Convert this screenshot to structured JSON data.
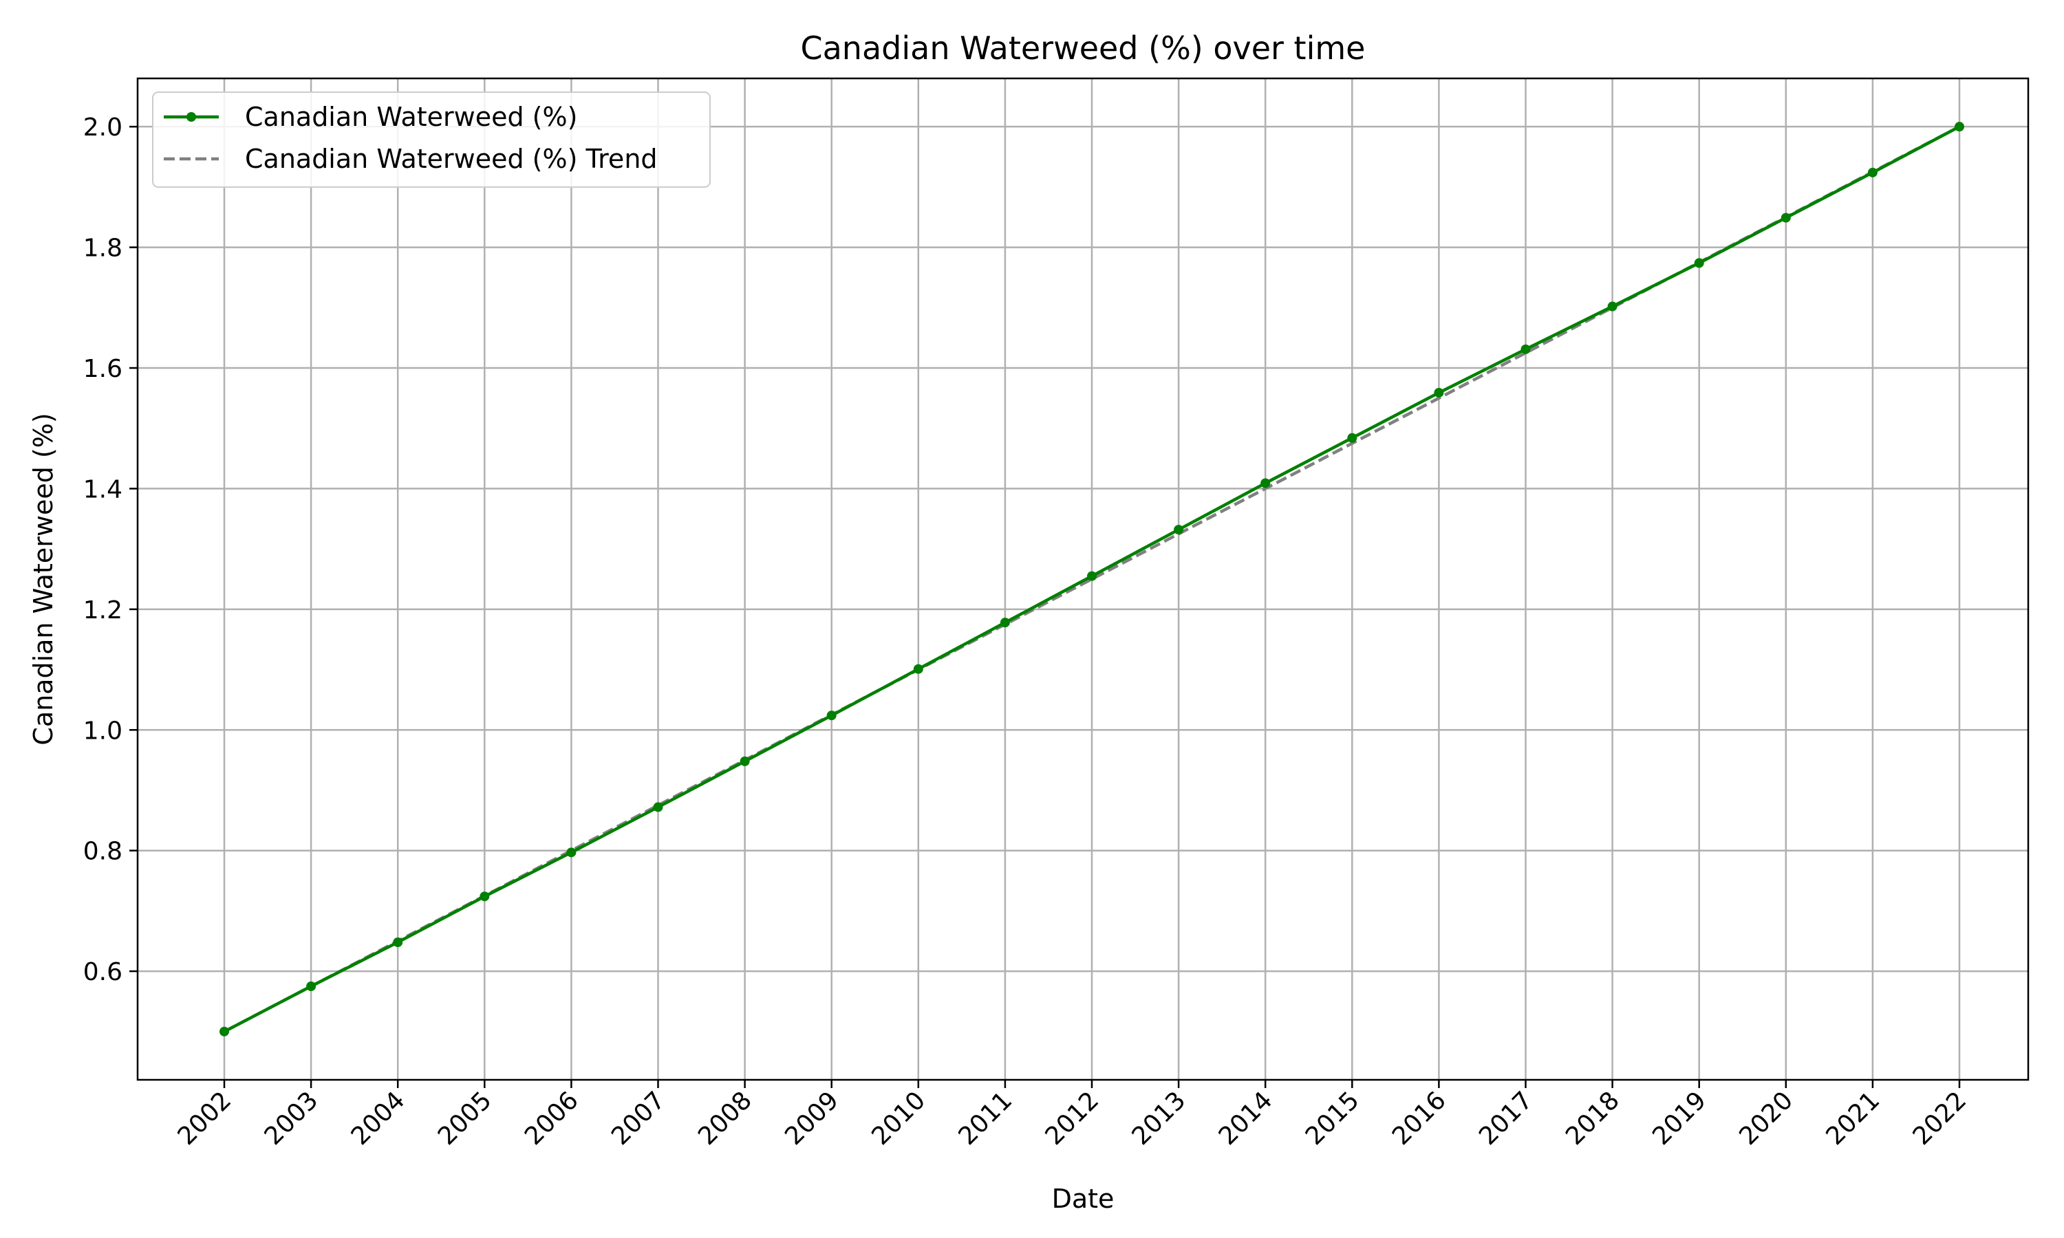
{
  "chart_data": {
    "type": "line",
    "title": "Canadian Waterweed (%) over time",
    "xlabel": "Date",
    "ylabel": "Canadian Waterweed (%)",
    "x": [
      "2002",
      "2003",
      "2004",
      "2005",
      "2006",
      "2007",
      "2008",
      "2009",
      "2010",
      "2011",
      "2012",
      "2013",
      "2014",
      "2015",
      "2016",
      "2017",
      "2018",
      "2019",
      "2020",
      "2021",
      "2022"
    ],
    "yticks": [
      "0.6",
      "0.8",
      "1.0",
      "1.2",
      "1.4",
      "1.6",
      "1.8",
      "2.0"
    ],
    "ylim": [
      0.42,
      2.08
    ],
    "grid": true,
    "legend_position": "upper-left",
    "series": [
      {
        "name": "Canadian Waterweed (%)",
        "color": "#008000",
        "style": "solid-markers",
        "values": [
          0.5,
          0.575,
          0.648,
          0.724,
          0.797,
          0.872,
          0.948,
          1.024,
          1.101,
          1.178,
          1.255,
          1.332,
          1.409,
          1.484,
          1.559,
          1.631,
          1.702,
          1.774,
          1.849,
          1.924,
          2.0
        ]
      },
      {
        "name": "Canadian Waterweed (%) Trend",
        "color": "#808080",
        "style": "dashed",
        "values": [
          0.5,
          0.575,
          0.65,
          0.725,
          0.8,
          0.875,
          0.95,
          1.025,
          1.1,
          1.175,
          1.25,
          1.325,
          1.4,
          1.475,
          1.55,
          1.625,
          1.7,
          1.775,
          1.85,
          1.925,
          2.0
        ]
      }
    ]
  }
}
